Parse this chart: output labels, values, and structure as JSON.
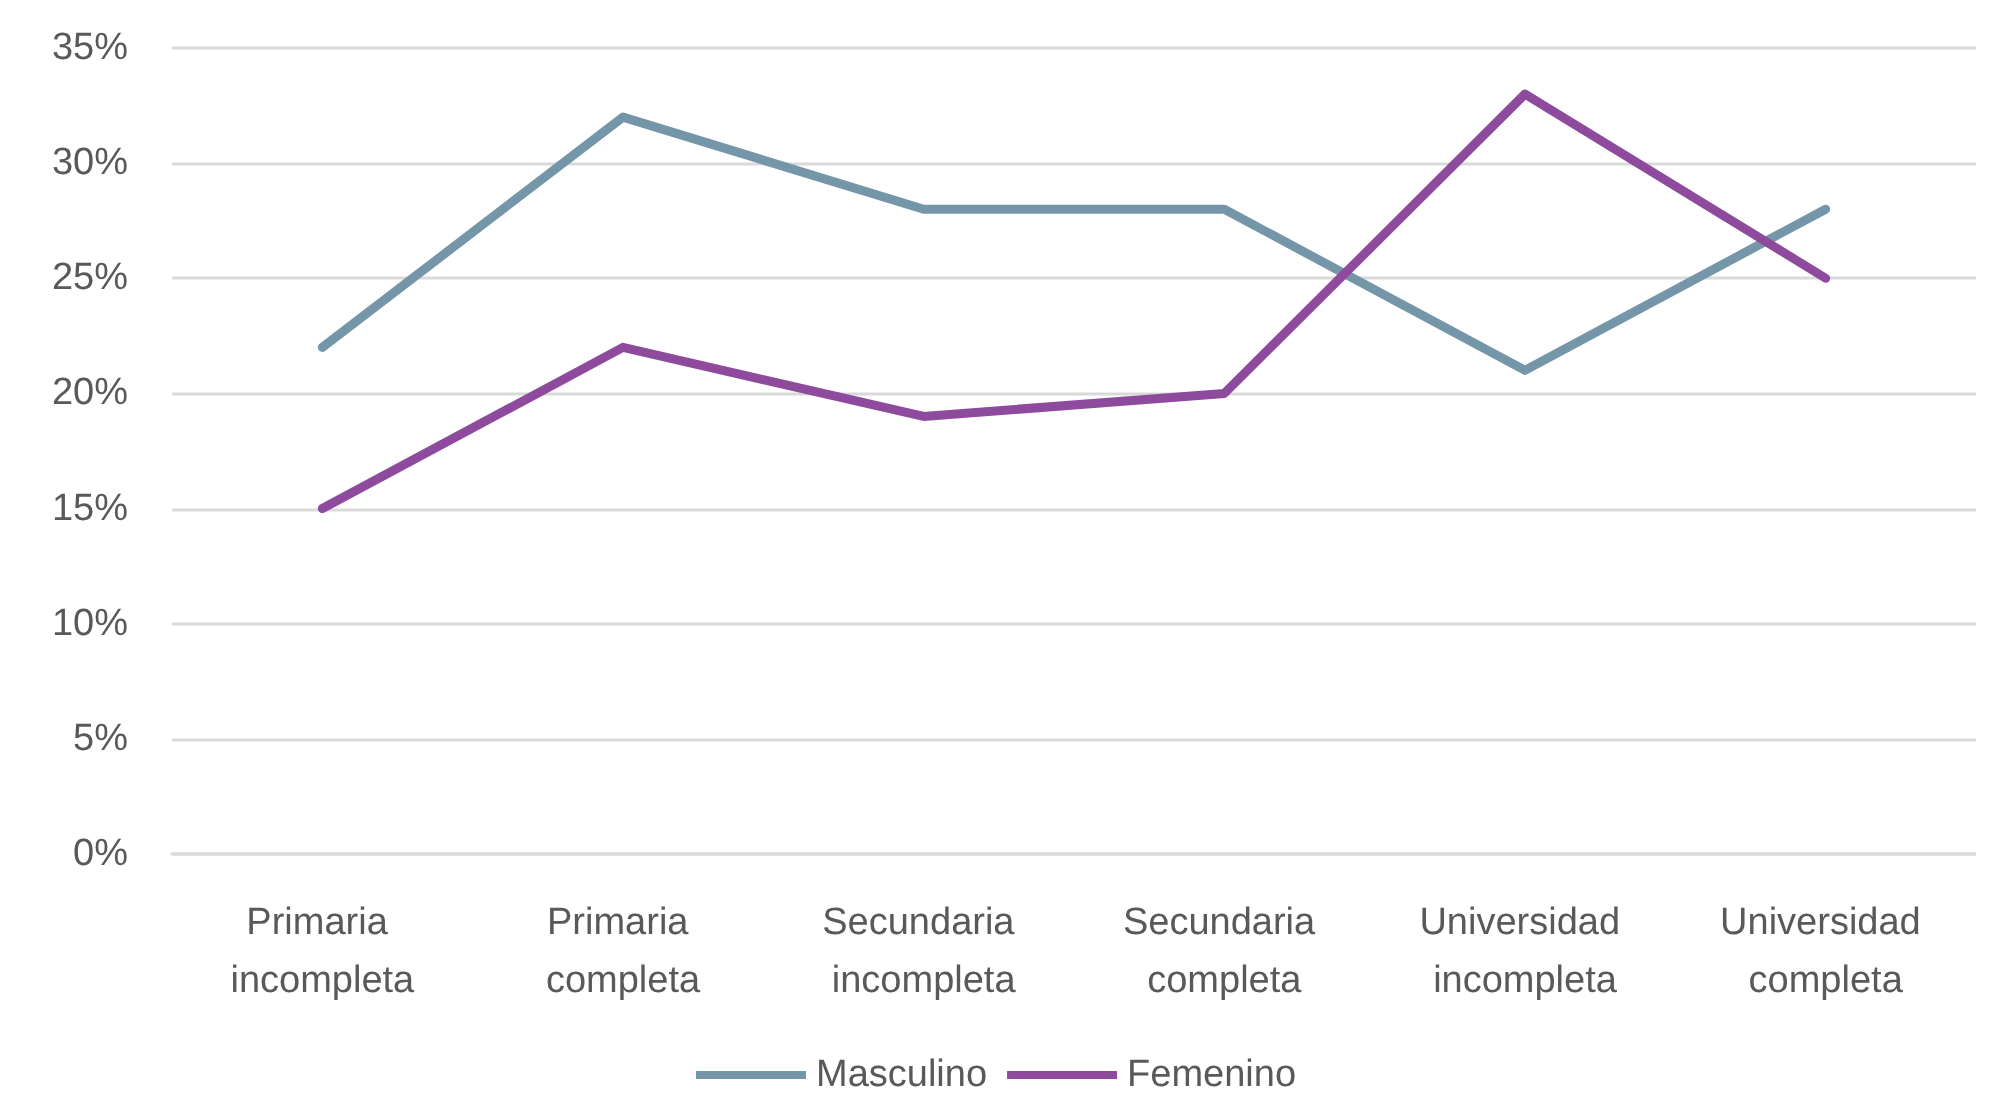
{
  "chart_data": {
    "type": "line",
    "categories": [
      "Primaria incompleta",
      "Primaria completa",
      "Secundaria incompleta",
      "Secundaria completa",
      "Universidad incompleta",
      "Universidad completa"
    ],
    "series": [
      {
        "name": "Masculino",
        "color": "#7596a8",
        "values": [
          22,
          32,
          28,
          28,
          21,
          28
        ]
      },
      {
        "name": "Femenino",
        "color": "#8e4b9e",
        "values": [
          15,
          22,
          19,
          20,
          33,
          25
        ]
      }
    ],
    "ylim": [
      0,
      35
    ],
    "yticks": [
      {
        "value": 0,
        "label": "0%"
      },
      {
        "value": 5,
        "label": "5%"
      },
      {
        "value": 10,
        "label": "10%"
      },
      {
        "value": 15,
        "label": "15%"
      },
      {
        "value": 20,
        "label": "20%"
      },
      {
        "value": 25,
        "label": "25%"
      },
      {
        "value": 30,
        "label": "30%"
      },
      {
        "value": 35,
        "label": "35%"
      }
    ],
    "grid": "y",
    "legend": "bottom",
    "marker": "none",
    "line_style": "solid"
  }
}
